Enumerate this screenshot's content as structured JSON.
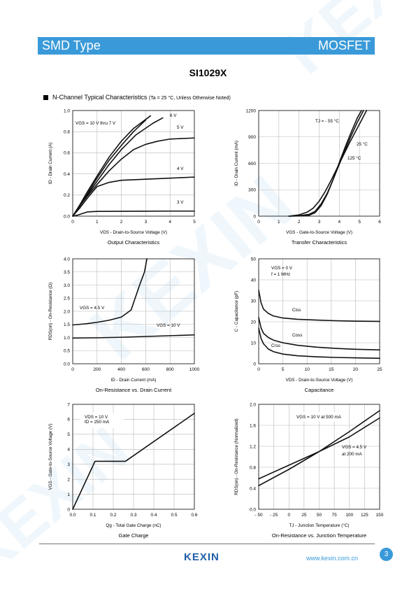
{
  "header": {
    "left": "SMD Type",
    "right": "MOSFET",
    "color": "#3a9ad9"
  },
  "part_number": "SI1029X",
  "section": {
    "title": "N-Channel Typical Characteristics",
    "note": "(Ta = 25 °C, Unless Otherwise Noted)"
  },
  "footer": {
    "logo": "KEXIN",
    "url": "www.kexin.com.cn",
    "page": "3"
  },
  "chart_data": [
    {
      "id": "output",
      "type": "line",
      "title": "Output Characteristics",
      "xlabel": "VDS - Drain-to-Source Voltage (V)",
      "ylabel": "ID - Drain Current (A)",
      "xlim": [
        0,
        5
      ],
      "ylim": [
        0,
        1.0
      ],
      "xticks": [
        "0",
        "1",
        "2",
        "3",
        "4",
        "5"
      ],
      "yticks": [
        "0.0",
        "0.2",
        "0.4",
        "0.6",
        "0.8",
        "1.0"
      ],
      "grid": true,
      "annotations": [
        "VGS = 10 V thru 7 V",
        "6 V",
        "5 V",
        "4 V",
        "3 V"
      ],
      "series": [
        {
          "name": "VGS = 10 V",
          "x": [
            0,
            0.3,
            0.6,
            1.0,
            1.5,
            2.0,
            2.5,
            3.2
          ],
          "y": [
            0,
            0.11,
            0.23,
            0.38,
            0.56,
            0.71,
            0.83,
            0.95
          ]
        },
        {
          "name": "VGS = 7 V",
          "x": [
            0,
            0.3,
            0.6,
            1.0,
            1.5,
            2.0,
            2.5,
            3.0
          ],
          "y": [
            0,
            0.1,
            0.21,
            0.36,
            0.53,
            0.67,
            0.8,
            0.91
          ]
        },
        {
          "name": "VGS = 6 V",
          "x": [
            0,
            0.3,
            0.6,
            1.0,
            1.5,
            2.0,
            2.6,
            3.3,
            3.7
          ],
          "y": [
            0,
            0.1,
            0.2,
            0.33,
            0.49,
            0.63,
            0.77,
            0.88,
            0.93
          ]
        },
        {
          "name": "VGS = 5 V",
          "x": [
            0,
            0.3,
            0.6,
            1.0,
            1.5,
            2.0,
            2.5,
            3.0,
            3.5,
            4.0,
            5.0
          ],
          "y": [
            0,
            0.1,
            0.19,
            0.3,
            0.43,
            0.54,
            0.63,
            0.68,
            0.71,
            0.73,
            0.74
          ]
        },
        {
          "name": "VGS = 4 V",
          "x": [
            0,
            0.3,
            0.6,
            1.0,
            1.5,
            2.0,
            3.0,
            4.0,
            5.0
          ],
          "y": [
            0,
            0.08,
            0.17,
            0.28,
            0.32,
            0.34,
            0.35,
            0.36,
            0.37
          ]
        },
        {
          "name": "VGS = 3 V",
          "x": [
            0,
            0.2,
            0.4,
            0.6,
            1.0,
            2.0,
            3.0,
            4.0,
            5.0
          ],
          "y": [
            0,
            0.01,
            0.025,
            0.04,
            0.045,
            0.046,
            0.047,
            0.048,
            0.048
          ]
        }
      ]
    },
    {
      "id": "transfer",
      "type": "line",
      "title": "Transfer Characteristics",
      "xlabel": "VGS - Gate-to-Source Voltage (V)",
      "ylabel": "ID - Drain Current (mA)",
      "xlim": [
        0,
        6
      ],
      "ylim": [
        0,
        1200
      ],
      "xticks": [
        "0",
        "1",
        "2",
        "3",
        "4",
        "5",
        "6"
      ],
      "yticks": [
        "0",
        "300",
        "600",
        "900",
        "1200"
      ],
      "grid": true,
      "annotations": [
        "TJ = - 55 °C",
        "25 °C",
        "125 °C"
      ],
      "series": [
        {
          "name": "TJ = - 55 °C",
          "x": [
            1.5,
            2.0,
            2.5,
            2.8,
            3.1,
            3.4,
            3.7,
            4.0,
            4.3,
            4.6,
            4.9,
            5.1
          ],
          "y": [
            0,
            2,
            10,
            40,
            120,
            250,
            420,
            610,
            790,
            960,
            1120,
            1200
          ]
        },
        {
          "name": "TJ = 25 °C",
          "x": [
            1.5,
            2.0,
            2.5,
            2.8,
            3.1,
            3.4,
            3.7,
            4.0,
            4.3,
            4.6,
            4.9,
            5.2
          ],
          "y": [
            0,
            5,
            20,
            55,
            140,
            260,
            420,
            590,
            760,
            920,
            1070,
            1200
          ]
        },
        {
          "name": "TJ = 125 °C",
          "x": [
            1.5,
            2.0,
            2.4,
            2.7,
            3.0,
            3.3,
            3.6,
            3.9,
            4.2,
            4.5,
            4.8,
            5.1,
            5.35
          ],
          "y": [
            0,
            15,
            45,
            90,
            170,
            280,
            410,
            550,
            690,
            830,
            960,
            1090,
            1200
          ]
        }
      ]
    },
    {
      "id": "on-resistance-id",
      "type": "line",
      "title": "On-Resistance vs. Drain Current",
      "xlabel": "ID - Drain Current (mA)",
      "ylabel": "RDS(on) - On-Resistance (Ω)",
      "xlim": [
        0,
        1000
      ],
      "ylim": [
        0,
        4.0
      ],
      "xticks": [
        "0",
        "200",
        "400",
        "600",
        "800",
        "1000"
      ],
      "yticks": [
        "0.0",
        "0.5",
        "1.0",
        "1.5",
        "2.0",
        "2.5",
        "3.0",
        "3.5",
        "4.0"
      ],
      "grid": true,
      "annotations": [
        "VGS = 4.5 V",
        "VGS = 10 V"
      ],
      "series": [
        {
          "name": "VGS = 4.5 V",
          "x": [
            0,
            100,
            200,
            300,
            400,
            480,
            550,
            590,
            610
          ],
          "y": [
            1.48,
            1.52,
            1.58,
            1.66,
            1.78,
            2.05,
            3.0,
            3.5,
            4.0
          ]
        },
        {
          "name": "VGS = 10 V",
          "x": [
            0,
            200,
            400,
            600,
            800,
            1000
          ],
          "y": [
            0.98,
            0.99,
            1.01,
            1.04,
            1.07,
            1.1
          ]
        }
      ]
    },
    {
      "id": "capacitance",
      "type": "line",
      "title": "Capacitance",
      "xlabel": "VDS - Drain-to-Source Voltage (V)",
      "ylabel": "C - Capacitance (pF)",
      "xlim": [
        0,
        25
      ],
      "ylim": [
        0,
        50
      ],
      "xticks": [
        "0",
        "5",
        "10",
        "15",
        "20",
        "25"
      ],
      "yticks": [
        "0",
        "10",
        "20",
        "30",
        "40",
        "50"
      ],
      "grid": true,
      "annotations": [
        "VGS = 0 V",
        "f = 1 MHz",
        "Ciss",
        "Coss",
        "Crss"
      ],
      "series": [
        {
          "name": "Ciss",
          "x": [
            0,
            0.5,
            1,
            2,
            3,
            5,
            8,
            12,
            16,
            20,
            25
          ],
          "y": [
            35,
            29,
            26,
            24,
            22.8,
            21.8,
            21.2,
            20.8,
            20.5,
            20.3,
            20.2
          ]
        },
        {
          "name": "Coss",
          "x": [
            0,
            0.5,
            1,
            2,
            3,
            5,
            8,
            12,
            16,
            20,
            25
          ],
          "y": [
            22,
            17,
            14.5,
            12.5,
            11.3,
            10,
            8.8,
            7.9,
            7.3,
            6.9,
            6.6
          ]
        },
        {
          "name": "Crss",
          "x": [
            0,
            0.5,
            1,
            2,
            3,
            5,
            8,
            12,
            16,
            20,
            25
          ],
          "y": [
            17,
            12,
            9.5,
            7,
            5.8,
            4.6,
            3.8,
            3.3,
            3.0,
            2.8,
            2.6
          ]
        }
      ]
    },
    {
      "id": "gate-charge",
      "type": "line",
      "title": "Gate Charge",
      "xlabel": "Qg - Total Gate Charge (nC)",
      "ylabel": "VGS - Gate-to-Source Voltage (V)",
      "xlim": [
        0,
        0.6
      ],
      "ylim": [
        0,
        7
      ],
      "xticks": [
        "0.0",
        "0.1",
        "0.2",
        "0.3",
        "0.4",
        "0.5",
        "0.6"
      ],
      "yticks": [
        "0",
        "1",
        "2",
        "3",
        "4",
        "5",
        "6",
        "7"
      ],
      "grid": true,
      "annotations": [
        "VDS = 10 V",
        "ID = 250 mA"
      ],
      "series": [
        {
          "name": "VGS",
          "x": [
            0,
            0.11,
            0.26,
            0.6
          ],
          "y": [
            0,
            3.2,
            3.2,
            6.4
          ]
        }
      ]
    },
    {
      "id": "on-resistance-tj",
      "type": "line",
      "title": "On-Resistance vs. Junction Temperature",
      "xlabel": "TJ - Junction Temperature (°C)",
      "ylabel": "RDS(on) - On-Resistance (Normalized)",
      "xlim": [
        -50,
        150
      ],
      "ylim": [
        0.0,
        2.0
      ],
      "xticks": [
        "- 50",
        "- 25",
        "0",
        "25",
        "50",
        "75",
        "100",
        "125",
        "150"
      ],
      "yticks": [
        "0.0",
        "0.4",
        "0.8",
        "1.2",
        "1.6",
        "2.0"
      ],
      "grid": true,
      "annotations": [
        "VGS = 10 V at 500 mA",
        "VGS = 4.5 V",
        "at 200 mA"
      ],
      "series": [
        {
          "name": "VGS = 10 V at 500 mA",
          "x": [
            -50,
            0,
            50,
            100,
            150
          ],
          "y": [
            0.45,
            0.76,
            1.1,
            1.48,
            1.88
          ]
        },
        {
          "name": "VGS = 4.5 V at 200 mA",
          "x": [
            -50,
            0,
            50,
            100,
            150
          ],
          "y": [
            0.58,
            0.84,
            1.1,
            1.38,
            1.74
          ]
        }
      ]
    }
  ]
}
